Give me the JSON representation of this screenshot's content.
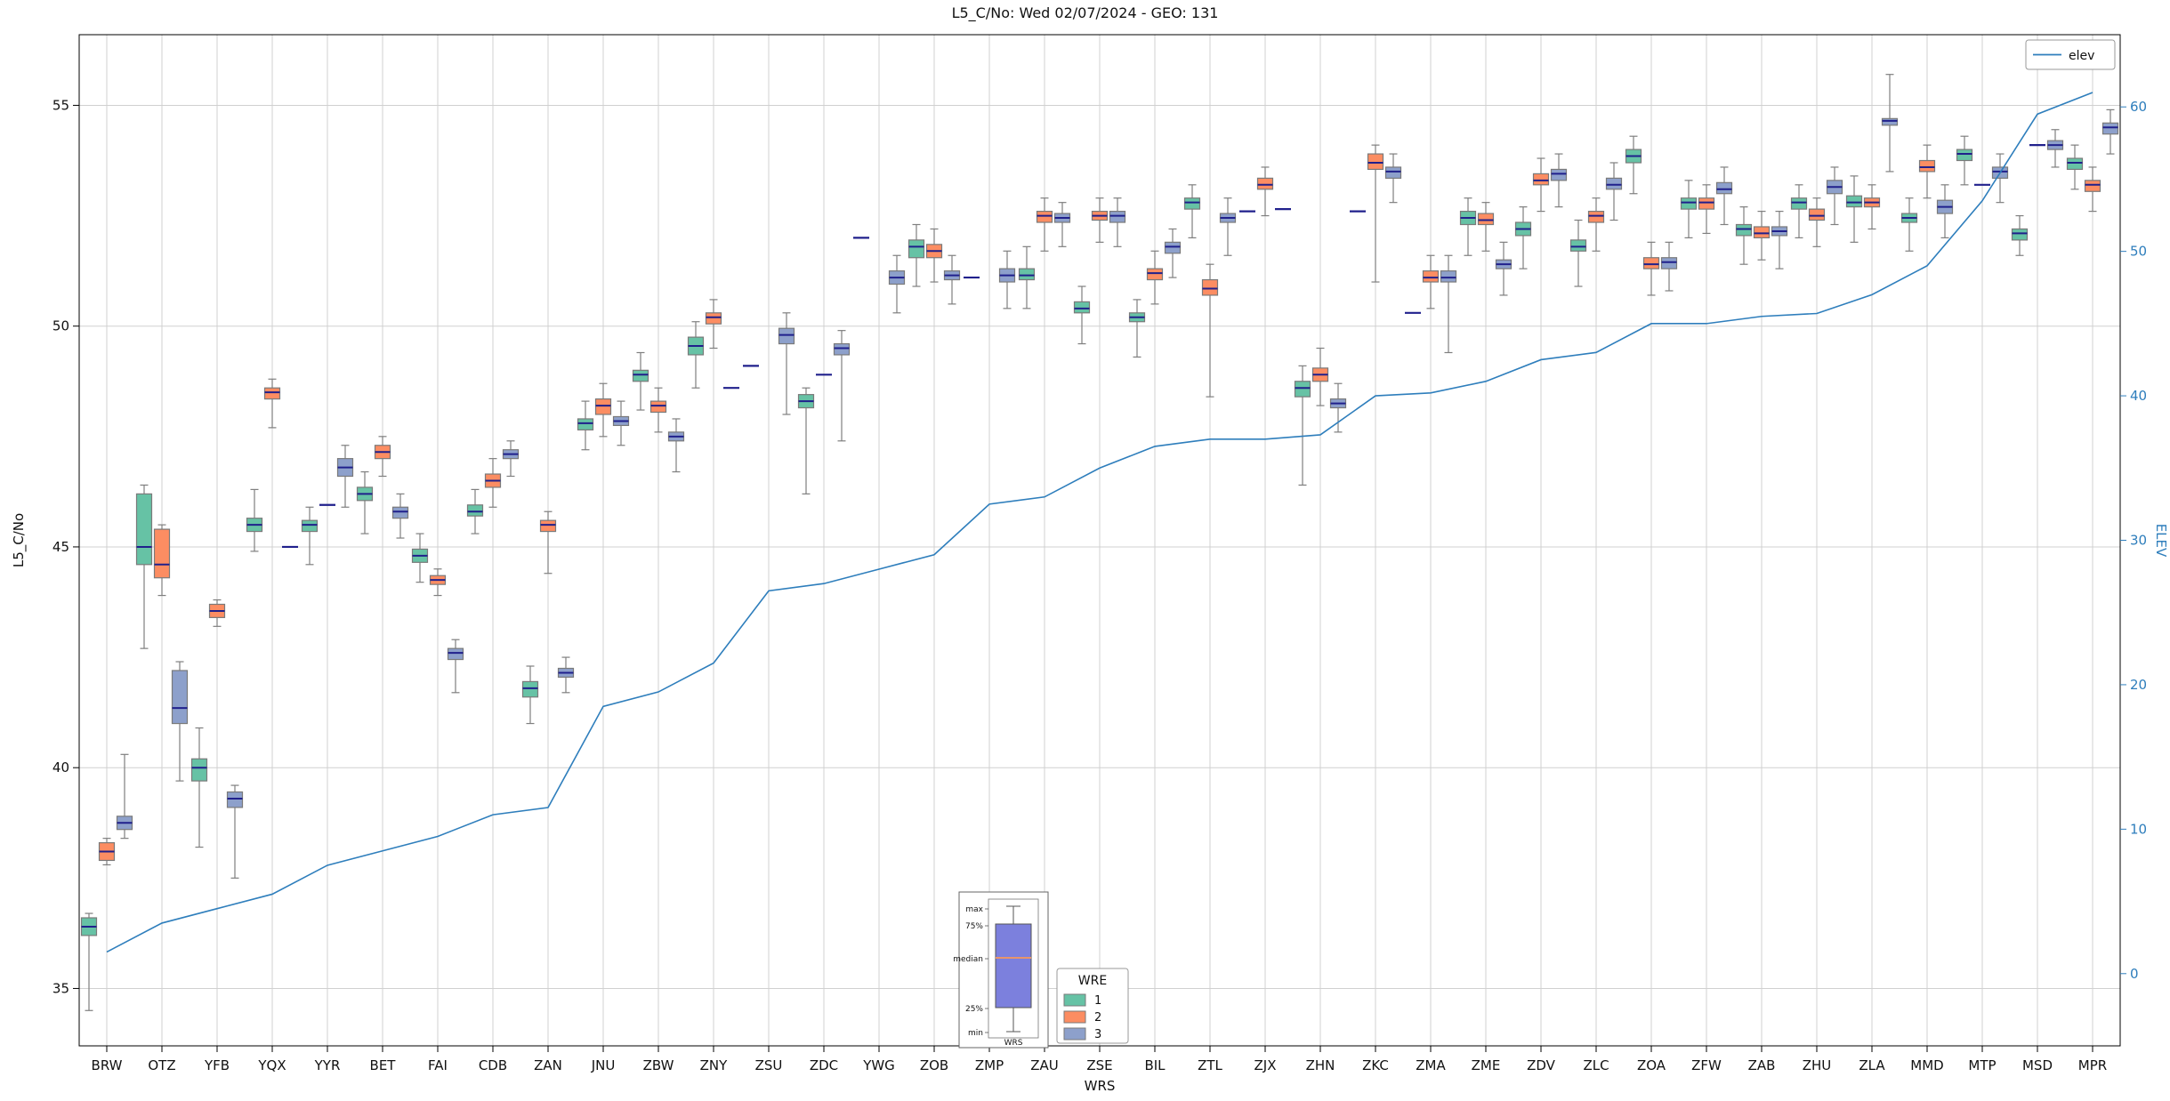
{
  "chart_data": {
    "type": "boxplot+line",
    "title": "L5_C/No: Wed 02/07/2024 - GEO: 131",
    "xlabel": "WRS",
    "ylabel_left": "L5_C/No",
    "ylabel_right": "ELEV",
    "grid": true,
    "y_left_ticks": [
      35,
      40,
      45,
      50,
      55
    ],
    "y_left_range": [
      33.7,
      56.6
    ],
    "y_right_ticks": [
      0,
      10,
      20,
      30,
      40,
      50,
      60
    ],
    "y_right_range": [
      -5,
      65
    ],
    "colors": {
      "wre1": "#66c2a5",
      "wre2": "#fc8d62",
      "wre3": "#8da0cb",
      "box_edge": "#7a7a7a",
      "whisker": "#7f7f7f",
      "median": "#20208c",
      "elev_line": "#2e7ebc",
      "grid": "#d0d0d0",
      "right_axis": "#2e7ebc"
    },
    "line_legend": {
      "label": "elev",
      "position": "upper right"
    },
    "series_legend": {
      "title": "WRE",
      "position": "bottom center",
      "entries": [
        {
          "label": "1",
          "color": "#66c2a5"
        },
        {
          "label": "2",
          "color": "#fc8d62"
        },
        {
          "label": "3",
          "color": "#8da0cb"
        }
      ]
    },
    "anatomy_inset": {
      "labels": [
        "max",
        "75%",
        "median",
        "25%",
        "min"
      ],
      "xlabel": "WRS",
      "box_color": "#7c80dd",
      "median_color": "#e8946a"
    },
    "categories": [
      "BRW",
      "OTZ",
      "YFB",
      "YQX",
      "YYR",
      "BET",
      "FAI",
      "CDB",
      "ZAN",
      "JNU",
      "ZBW",
      "ZNY",
      "ZSU",
      "ZDC",
      "YWG",
      "ZOB",
      "ZMP",
      "ZAU",
      "ZSE",
      "BIL",
      "ZTL",
      "ZJX",
      "ZHN",
      "ZKC",
      "ZMA",
      "ZME",
      "ZDV",
      "ZLC",
      "ZOA",
      "ZFW",
      "ZAB",
      "ZHU",
      "ZLA",
      "MMD",
      "MTP",
      "MSD",
      "MPR"
    ],
    "elev": [
      1.5,
      3.5,
      4.5,
      5.5,
      7.5,
      8.5,
      9.5,
      11,
      11.5,
      18.5,
      19.5,
      21.5,
      26.5,
      27,
      28,
      29,
      32.5,
      33,
      35,
      36.5,
      37,
      37,
      37.3,
      40,
      40.2,
      41,
      42.5,
      43,
      45,
      45,
      45.5,
      45.7,
      47,
      49,
      53.5,
      59.5,
      61
    ],
    "boxes": {
      "wre1": [
        [
          34.5,
          36.2,
          36.4,
          36.6,
          36.7
        ],
        [
          42.7,
          44.6,
          45.0,
          46.2,
          46.4
        ],
        [
          38.2,
          39.7,
          40.0,
          40.2,
          40.9
        ],
        [
          44.9,
          45.35,
          45.5,
          45.65,
          46.3
        ],
        [
          44.6,
          45.35,
          45.5,
          45.6,
          45.9
        ],
        [
          45.3,
          46.05,
          46.2,
          46.35,
          46.7
        ],
        [
          44.2,
          44.65,
          44.8,
          44.95,
          45.3
        ],
        [
          45.3,
          45.7,
          45.8,
          45.95,
          46.3
        ],
        [
          41.0,
          41.6,
          41.8,
          41.95,
          42.3
        ],
        [
          47.2,
          47.65,
          47.8,
          47.9,
          48.3
        ],
        [
          48.1,
          48.75,
          48.9,
          49.0,
          49.4
        ],
        [
          48.6,
          49.35,
          49.55,
          49.75,
          50.1
        ],
        [
          49.1
        ],
        [
          46.2,
          48.15,
          48.3,
          48.45,
          48.6
        ],
        [
          52.0
        ],
        [
          50.9,
          51.55,
          51.8,
          51.95,
          52.3
        ],
        [
          51.1
        ],
        [
          50.4,
          51.05,
          51.15,
          51.3,
          51.8
        ],
        [
          49.6,
          50.3,
          50.4,
          50.55,
          50.9
        ],
        [
          49.3,
          50.1,
          50.2,
          50.3,
          50.6
        ],
        [
          52.0,
          52.65,
          52.8,
          52.9,
          53.2
        ],
        [
          52.6
        ],
        [
          46.4,
          48.4,
          48.6,
          48.75,
          49.1
        ],
        [
          52.6
        ],
        [
          50.3
        ],
        [
          51.6,
          52.3,
          52.45,
          52.6,
          52.9
        ],
        [
          51.3,
          52.05,
          52.2,
          52.35,
          52.7
        ],
        [
          50.9,
          51.7,
          51.8,
          51.95,
          52.4
        ],
        [
          53.0,
          53.7,
          53.85,
          54.0,
          54.3
        ],
        [
          52.0,
          52.65,
          52.8,
          52.9,
          53.3
        ],
        [
          51.4,
          52.05,
          52.2,
          52.3,
          52.7
        ],
        [
          52.0,
          52.65,
          52.8,
          52.9,
          53.2
        ],
        [
          51.9,
          52.7,
          52.8,
          52.95,
          53.4
        ],
        [
          51.7,
          52.35,
          52.45,
          52.55,
          52.9
        ],
        [
          53.2,
          53.75,
          53.9,
          54.0,
          54.3
        ],
        [
          51.6,
          51.95,
          52.1,
          52.2,
          52.5
        ],
        [
          53.1,
          53.55,
          53.7,
          53.8,
          54.1
        ]
      ],
      "wre2": [
        [
          37.8,
          37.9,
          38.1,
          38.3,
          38.4
        ],
        [
          43.9,
          44.3,
          44.6,
          45.4,
          45.5
        ],
        [
          43.2,
          43.4,
          43.55,
          43.7,
          43.8
        ],
        [
          47.7,
          48.35,
          48.5,
          48.6,
          48.8
        ],
        [
          45.95
        ],
        [
          46.6,
          47.0,
          47.15,
          47.3,
          47.5
        ],
        [
          43.9,
          44.15,
          44.25,
          44.35,
          44.5
        ],
        [
          45.9,
          46.35,
          46.5,
          46.65,
          47.0
        ],
        [
          44.4,
          45.35,
          45.5,
          45.6,
          45.8
        ],
        [
          47.5,
          48.0,
          48.2,
          48.35,
          48.7
        ],
        [
          47.6,
          48.05,
          48.2,
          48.3,
          48.6
        ],
        [
          49.5,
          50.05,
          50.2,
          50.3,
          50.6
        ],
        null,
        [
          48.9
        ],
        null,
        [
          51.0,
          51.55,
          51.7,
          51.85,
          52.2
        ],
        null,
        [
          51.7,
          52.35,
          52.5,
          52.6,
          52.9
        ],
        [
          51.9,
          52.4,
          52.5,
          52.6,
          52.9
        ],
        [
          50.5,
          51.05,
          51.2,
          51.3,
          51.7
        ],
        [
          48.4,
          50.7,
          50.85,
          51.05,
          51.4
        ],
        [
          52.5,
          53.1,
          53.2,
          53.35,
          53.6
        ],
        [
          48.2,
          48.75,
          48.9,
          49.05,
          49.5
        ],
        [
          51.0,
          53.55,
          53.7,
          53.9,
          54.1
        ],
        [
          50.4,
          51.0,
          51.1,
          51.25,
          51.6
        ],
        [
          51.7,
          52.3,
          52.4,
          52.55,
          52.8
        ],
        [
          52.6,
          53.2,
          53.3,
          53.45,
          53.8
        ],
        [
          51.7,
          52.35,
          52.5,
          52.6,
          52.9
        ],
        [
          50.7,
          51.3,
          51.4,
          51.55,
          51.9
        ],
        [
          52.1,
          52.65,
          52.8,
          52.9,
          53.2
        ],
        [
          51.5,
          52.0,
          52.1,
          52.25,
          52.6
        ],
        [
          51.8,
          52.4,
          52.5,
          52.65,
          52.9
        ],
        [
          52.2,
          52.7,
          52.8,
          52.9,
          53.2
        ],
        [
          52.9,
          53.5,
          53.6,
          53.75,
          54.1
        ],
        [
          53.2
        ],
        [
          54.1
        ],
        [
          52.6,
          53.05,
          53.2,
          53.3,
          53.6
        ]
      ],
      "wre3": [
        [
          38.4,
          38.6,
          38.75,
          38.9,
          40.3
        ],
        [
          39.7,
          41.0,
          41.35,
          42.2,
          42.4
        ],
        [
          37.5,
          39.1,
          39.3,
          39.45,
          39.6
        ],
        [
          45.0
        ],
        [
          45.9,
          46.6,
          46.8,
          47.0,
          47.3
        ],
        [
          45.2,
          45.65,
          45.8,
          45.9,
          46.2
        ],
        [
          41.7,
          42.45,
          42.6,
          42.7,
          42.9
        ],
        [
          46.6,
          47.0,
          47.1,
          47.2,
          47.4
        ],
        [
          41.7,
          42.05,
          42.15,
          42.25,
          42.5
        ],
        [
          47.3,
          47.75,
          47.85,
          47.95,
          48.3
        ],
        [
          46.7,
          47.4,
          47.5,
          47.6,
          47.9
        ],
        [
          48.6
        ],
        [
          48.0,
          49.6,
          49.8,
          49.95,
          50.3
        ],
        [
          47.4,
          49.35,
          49.5,
          49.6,
          49.9
        ],
        [
          50.3,
          50.95,
          51.1,
          51.25,
          51.6
        ],
        [
          50.5,
          51.05,
          51.15,
          51.25,
          51.6
        ],
        [
          50.4,
          51.0,
          51.15,
          51.3,
          51.7
        ],
        [
          51.8,
          52.35,
          52.45,
          52.55,
          52.8
        ],
        [
          51.8,
          52.35,
          52.5,
          52.6,
          52.9
        ],
        [
          51.1,
          51.65,
          51.8,
          51.9,
          52.2
        ],
        [
          51.6,
          52.35,
          52.45,
          52.55,
          52.9
        ],
        [
          52.65
        ],
        [
          47.6,
          48.15,
          48.25,
          48.35,
          48.7
        ],
        [
          52.8,
          53.35,
          53.5,
          53.6,
          53.9
        ],
        [
          49.4,
          51.0,
          51.1,
          51.25,
          51.6
        ],
        [
          50.7,
          51.3,
          51.4,
          51.5,
          51.9
        ],
        [
          52.7,
          53.3,
          53.45,
          53.55,
          53.9
        ],
        [
          52.4,
          53.1,
          53.2,
          53.35,
          53.7
        ],
        [
          50.8,
          51.3,
          51.45,
          51.55,
          51.9
        ],
        [
          52.3,
          53.0,
          53.1,
          53.25,
          53.6
        ],
        [
          51.3,
          52.05,
          52.15,
          52.25,
          52.6
        ],
        [
          52.3,
          53.0,
          53.15,
          53.3,
          53.6
        ],
        [
          53.5,
          54.55,
          54.65,
          54.7,
          55.7
        ],
        [
          52.0,
          52.55,
          52.7,
          52.85,
          53.2
        ],
        [
          52.8,
          53.35,
          53.5,
          53.6,
          53.9
        ],
        [
          53.6,
          54.0,
          54.1,
          54.2,
          54.45
        ],
        [
          53.9,
          54.35,
          54.5,
          54.6,
          54.9
        ]
      ]
    }
  }
}
